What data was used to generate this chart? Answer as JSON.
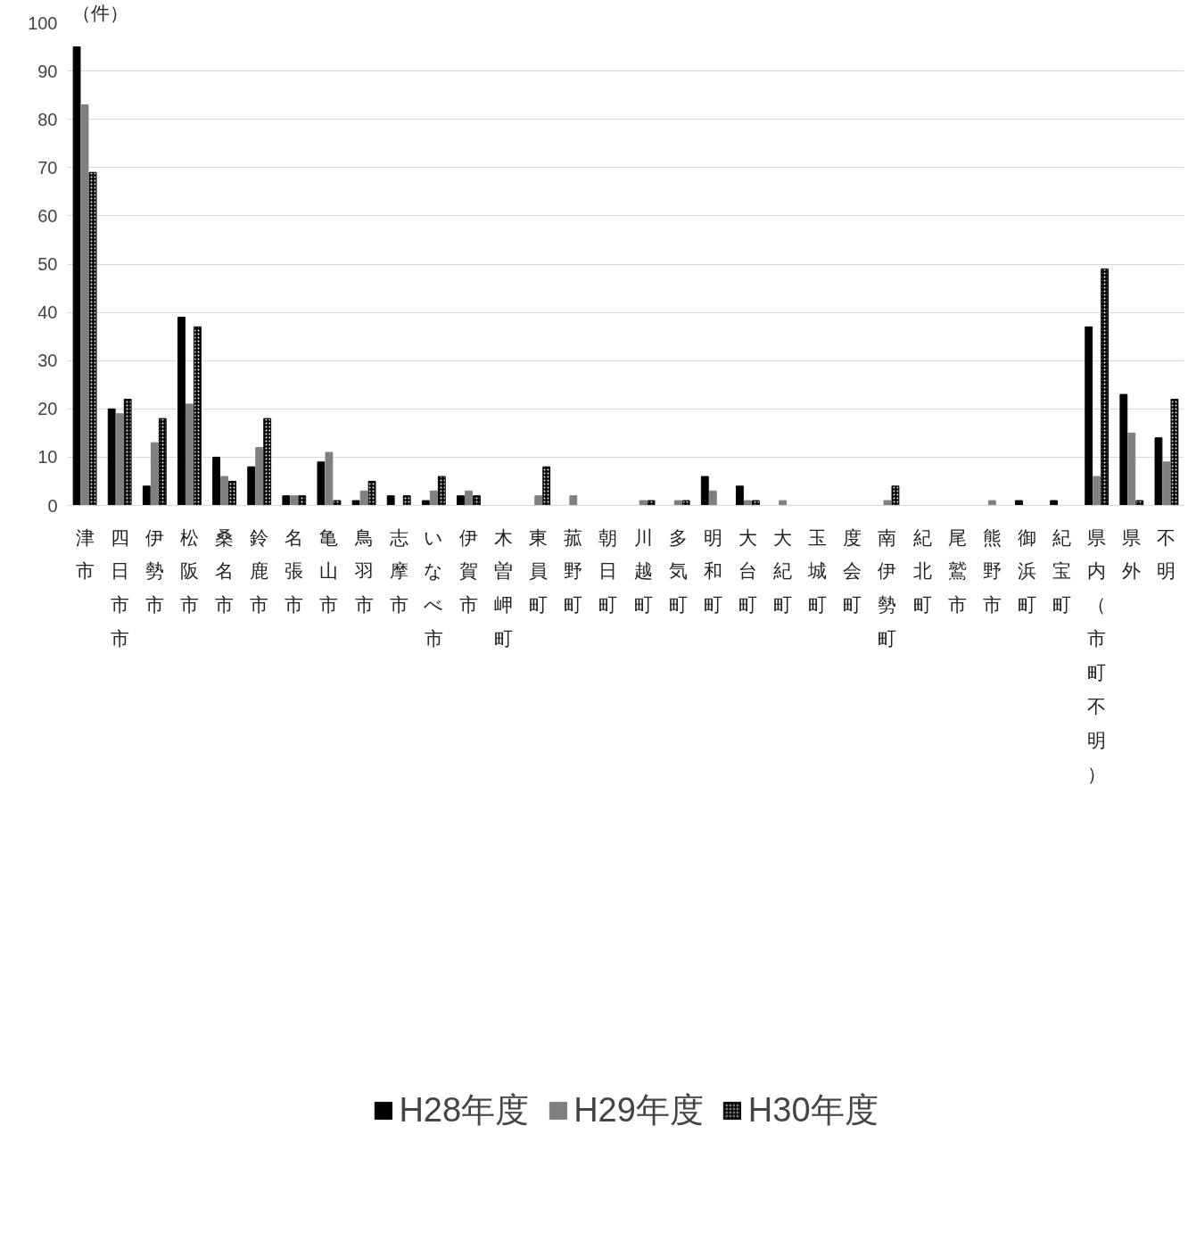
{
  "chart_data": {
    "type": "bar",
    "ylabel": "（件）",
    "categories": [
      "津市",
      "四日市市",
      "伊勢市",
      "松阪市",
      "桑名市",
      "鈴鹿市",
      "名張市",
      "亀山市",
      "鳥羽市",
      "志摩市",
      "いなべ市",
      "伊賀市",
      "木曽岬町",
      "東員町",
      "菰野町",
      "朝日町",
      "川越町",
      "多気町",
      "明和町",
      "大台町",
      "大紀町",
      "玉城町",
      "度会町",
      "南伊勢町",
      "紀北町",
      "尾鷲市",
      "熊野市",
      "御浜町",
      "紀宝町",
      "県内（市町不明）",
      "県外",
      "不明"
    ],
    "series": [
      {
        "name": "H28年度",
        "color": "#000000",
        "values": [
          95,
          20,
          4,
          39,
          10,
          8,
          2,
          9,
          1,
          2,
          1,
          2,
          0,
          0,
          0,
          0,
          0,
          0,
          6,
          4,
          0,
          0,
          0,
          0,
          0,
          0,
          0,
          1,
          1,
          37,
          23,
          14
        ]
      },
      {
        "name": "H29年度",
        "color": "#808080",
        "values": [
          83,
          19,
          13,
          21,
          6,
          12,
          2,
          11,
          3,
          0,
          3,
          3,
          0,
          2,
          2,
          0,
          1,
          1,
          3,
          1,
          1,
          0,
          0,
          1,
          0,
          0,
          1,
          0,
          0,
          6,
          15,
          9
        ]
      },
      {
        "name": "H30年度",
        "color": "#000000",
        "values": [
          69,
          22,
          18,
          37,
          5,
          18,
          2,
          1,
          5,
          2,
          6,
          2,
          0,
          8,
          0,
          0,
          1,
          1,
          0,
          1,
          0,
          0,
          0,
          4,
          0,
          0,
          0,
          0,
          0,
          49,
          1,
          22
        ]
      }
    ],
    "ylim": [
      0,
      100
    ],
    "yticks": [
      0,
      10,
      20,
      30,
      40,
      50,
      60,
      70,
      80,
      90,
      100
    ],
    "grid": "y",
    "legend": "bottom"
  }
}
